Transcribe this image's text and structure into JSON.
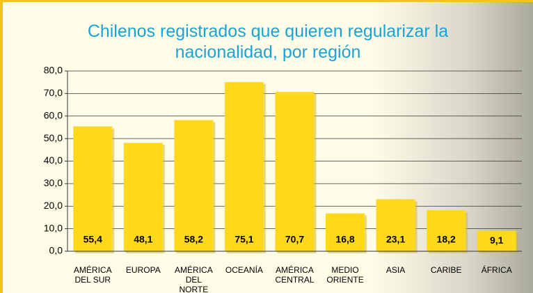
{
  "chart_data": {
    "type": "bar",
    "title": "Chilenos registrados que quieren regularizar la nacionalidad, por región",
    "categories": [
      "AMÉRICA DEL SUR",
      "EUROPA",
      "AMÉRICA DEL NORTE",
      "OCEANÍA",
      "AMÉRICA CENTRAL",
      "MEDIO ORIENTE",
      "ASIA",
      "CARIBE",
      "ÁFRICA"
    ],
    "values": [
      55.4,
      48.1,
      58.2,
      75.1,
      70.7,
      16.8,
      23.1,
      18.2,
      9.1
    ],
    "value_labels": [
      "55,4",
      "48,1",
      "58,2",
      "75,1",
      "70,7",
      "16,8",
      "23,1",
      "18,2",
      "9,1"
    ],
    "color": "#ffd91a",
    "ylim": [
      0,
      80
    ],
    "yticks": [
      {
        "value": 0,
        "label": "0,0"
      },
      {
        "value": 10,
        "label": "10,0"
      },
      {
        "value": 20,
        "label": "20,0"
      },
      {
        "value": 30,
        "label": "30,0"
      },
      {
        "value": 40,
        "label": "40,0"
      },
      {
        "value": 50,
        "label": "50,0"
      },
      {
        "value": 60,
        "label": "60,0"
      },
      {
        "value": 70,
        "label": "70,0"
      },
      {
        "value": 80,
        "label": "80,0"
      }
    ],
    "grid": true
  }
}
